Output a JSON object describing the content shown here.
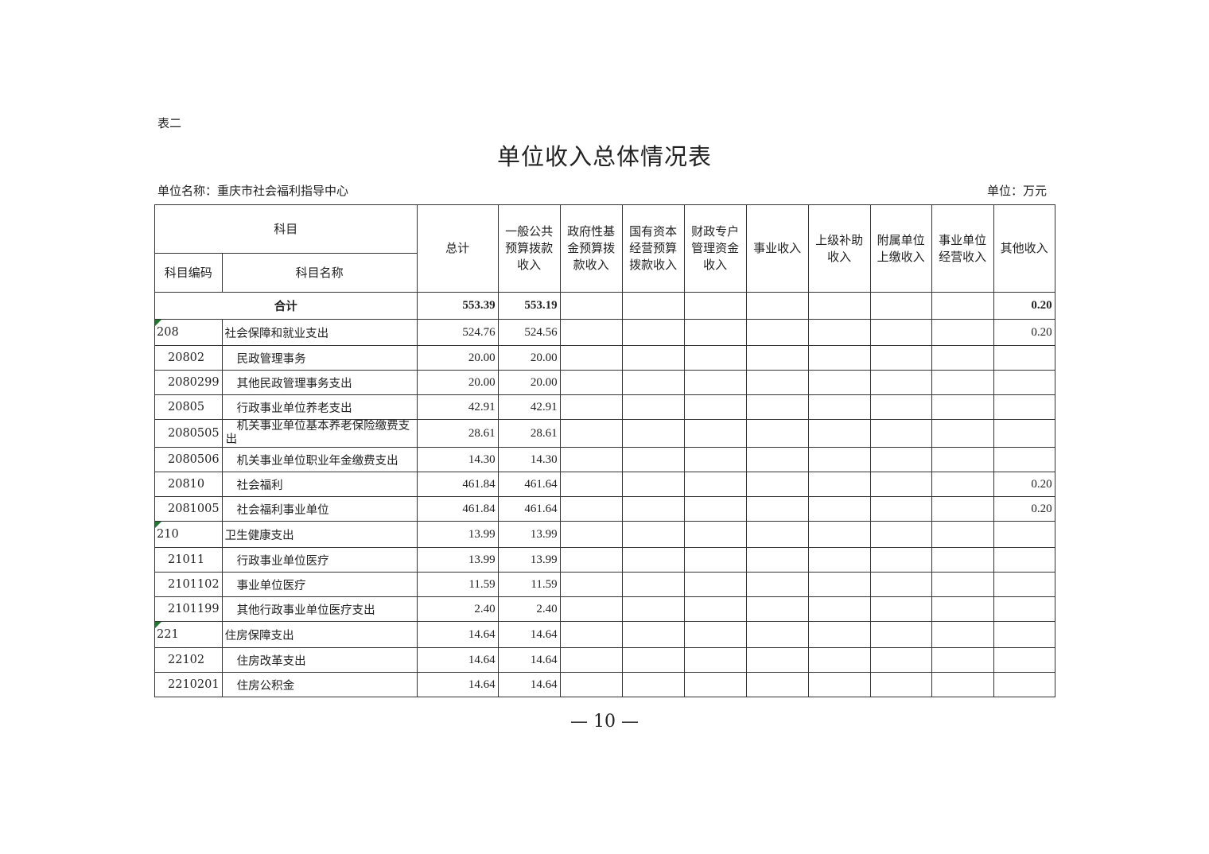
{
  "doc": {
    "table_label": "表二",
    "title": "单位收入总体情况表",
    "org": "单位名称：重庆市社会福利指导中心",
    "unit": "单位：万元",
    "page_number": "— 10 —",
    "marker_color": "#1f7a2e"
  },
  "header": {
    "subject": "科目",
    "code": "科目编码",
    "name": "科目名称",
    "columns": [
      "总计",
      "一般公共预算拨款收入",
      "政府性基金预算拨款收入",
      "国有资本经营预算拨款收入",
      "财政专户管理资金收入",
      "事业收入",
      "上级补助收入",
      "附属单位上缴收入",
      "事业单位经营收入",
      "其他收入"
    ]
  },
  "total_row": {
    "label": "合计",
    "values": [
      "553.39",
      "553.19",
      "",
      "",
      "",
      "",
      "",
      "",
      "",
      "0.20"
    ]
  },
  "rows": [
    {
      "code": "208",
      "name": "社会保障和就业支出",
      "level": 1,
      "values": [
        "524.76",
        "524.56",
        "",
        "",
        "",
        "",
        "",
        "",
        "",
        "0.20"
      ]
    },
    {
      "code": "20802",
      "name": "民政管理事务",
      "level": 2,
      "values": [
        "20.00",
        "20.00",
        "",
        "",
        "",
        "",
        "",
        "",
        "",
        ""
      ]
    },
    {
      "code": "2080299",
      "name": "其他民政管理事务支出",
      "level": 2,
      "values": [
        "20.00",
        "20.00",
        "",
        "",
        "",
        "",
        "",
        "",
        "",
        ""
      ]
    },
    {
      "code": "20805",
      "name": "行政事业单位养老支出",
      "level": 2,
      "values": [
        "42.91",
        "42.91",
        "",
        "",
        "",
        "",
        "",
        "",
        "",
        ""
      ]
    },
    {
      "code": "2080505",
      "name": "机关事业单位基本养老保险缴费支出",
      "level": 2,
      "values": [
        "28.61",
        "28.61",
        "",
        "",
        "",
        "",
        "",
        "",
        "",
        ""
      ]
    },
    {
      "code": "2080506",
      "name": "机关事业单位职业年金缴费支出",
      "level": 2,
      "values": [
        "14.30",
        "14.30",
        "",
        "",
        "",
        "",
        "",
        "",
        "",
        ""
      ]
    },
    {
      "code": "20810",
      "name": "社会福利",
      "level": 2,
      "values": [
        "461.84",
        "461.64",
        "",
        "",
        "",
        "",
        "",
        "",
        "",
        "0.20"
      ]
    },
    {
      "code": "2081005",
      "name": "社会福利事业单位",
      "level": 2,
      "values": [
        "461.84",
        "461.64",
        "",
        "",
        "",
        "",
        "",
        "",
        "",
        "0.20"
      ]
    },
    {
      "code": "210",
      "name": "卫生健康支出",
      "level": 1,
      "values": [
        "13.99",
        "13.99",
        "",
        "",
        "",
        "",
        "",
        "",
        "",
        ""
      ]
    },
    {
      "code": "21011",
      "name": "行政事业单位医疗",
      "level": 2,
      "values": [
        "13.99",
        "13.99",
        "",
        "",
        "",
        "",
        "",
        "",
        "",
        ""
      ]
    },
    {
      "code": "2101102",
      "name": "事业单位医疗",
      "level": 2,
      "values": [
        "11.59",
        "11.59",
        "",
        "",
        "",
        "",
        "",
        "",
        "",
        ""
      ]
    },
    {
      "code": "2101199",
      "name": "其他行政事业单位医疗支出",
      "level": 2,
      "values": [
        "2.40",
        "2.40",
        "",
        "",
        "",
        "",
        "",
        "",
        "",
        ""
      ]
    },
    {
      "code": "221",
      "name": "住房保障支出",
      "level": 1,
      "values": [
        "14.64",
        "14.64",
        "",
        "",
        "",
        "",
        "",
        "",
        "",
        ""
      ]
    },
    {
      "code": "22102",
      "name": "住房改革支出",
      "level": 2,
      "values": [
        "14.64",
        "14.64",
        "",
        "",
        "",
        "",
        "",
        "",
        "",
        ""
      ]
    },
    {
      "code": "2210201",
      "name": "住房公积金",
      "level": 2,
      "values": [
        "14.64",
        "14.64",
        "",
        "",
        "",
        "",
        "",
        "",
        "",
        ""
      ]
    }
  ]
}
